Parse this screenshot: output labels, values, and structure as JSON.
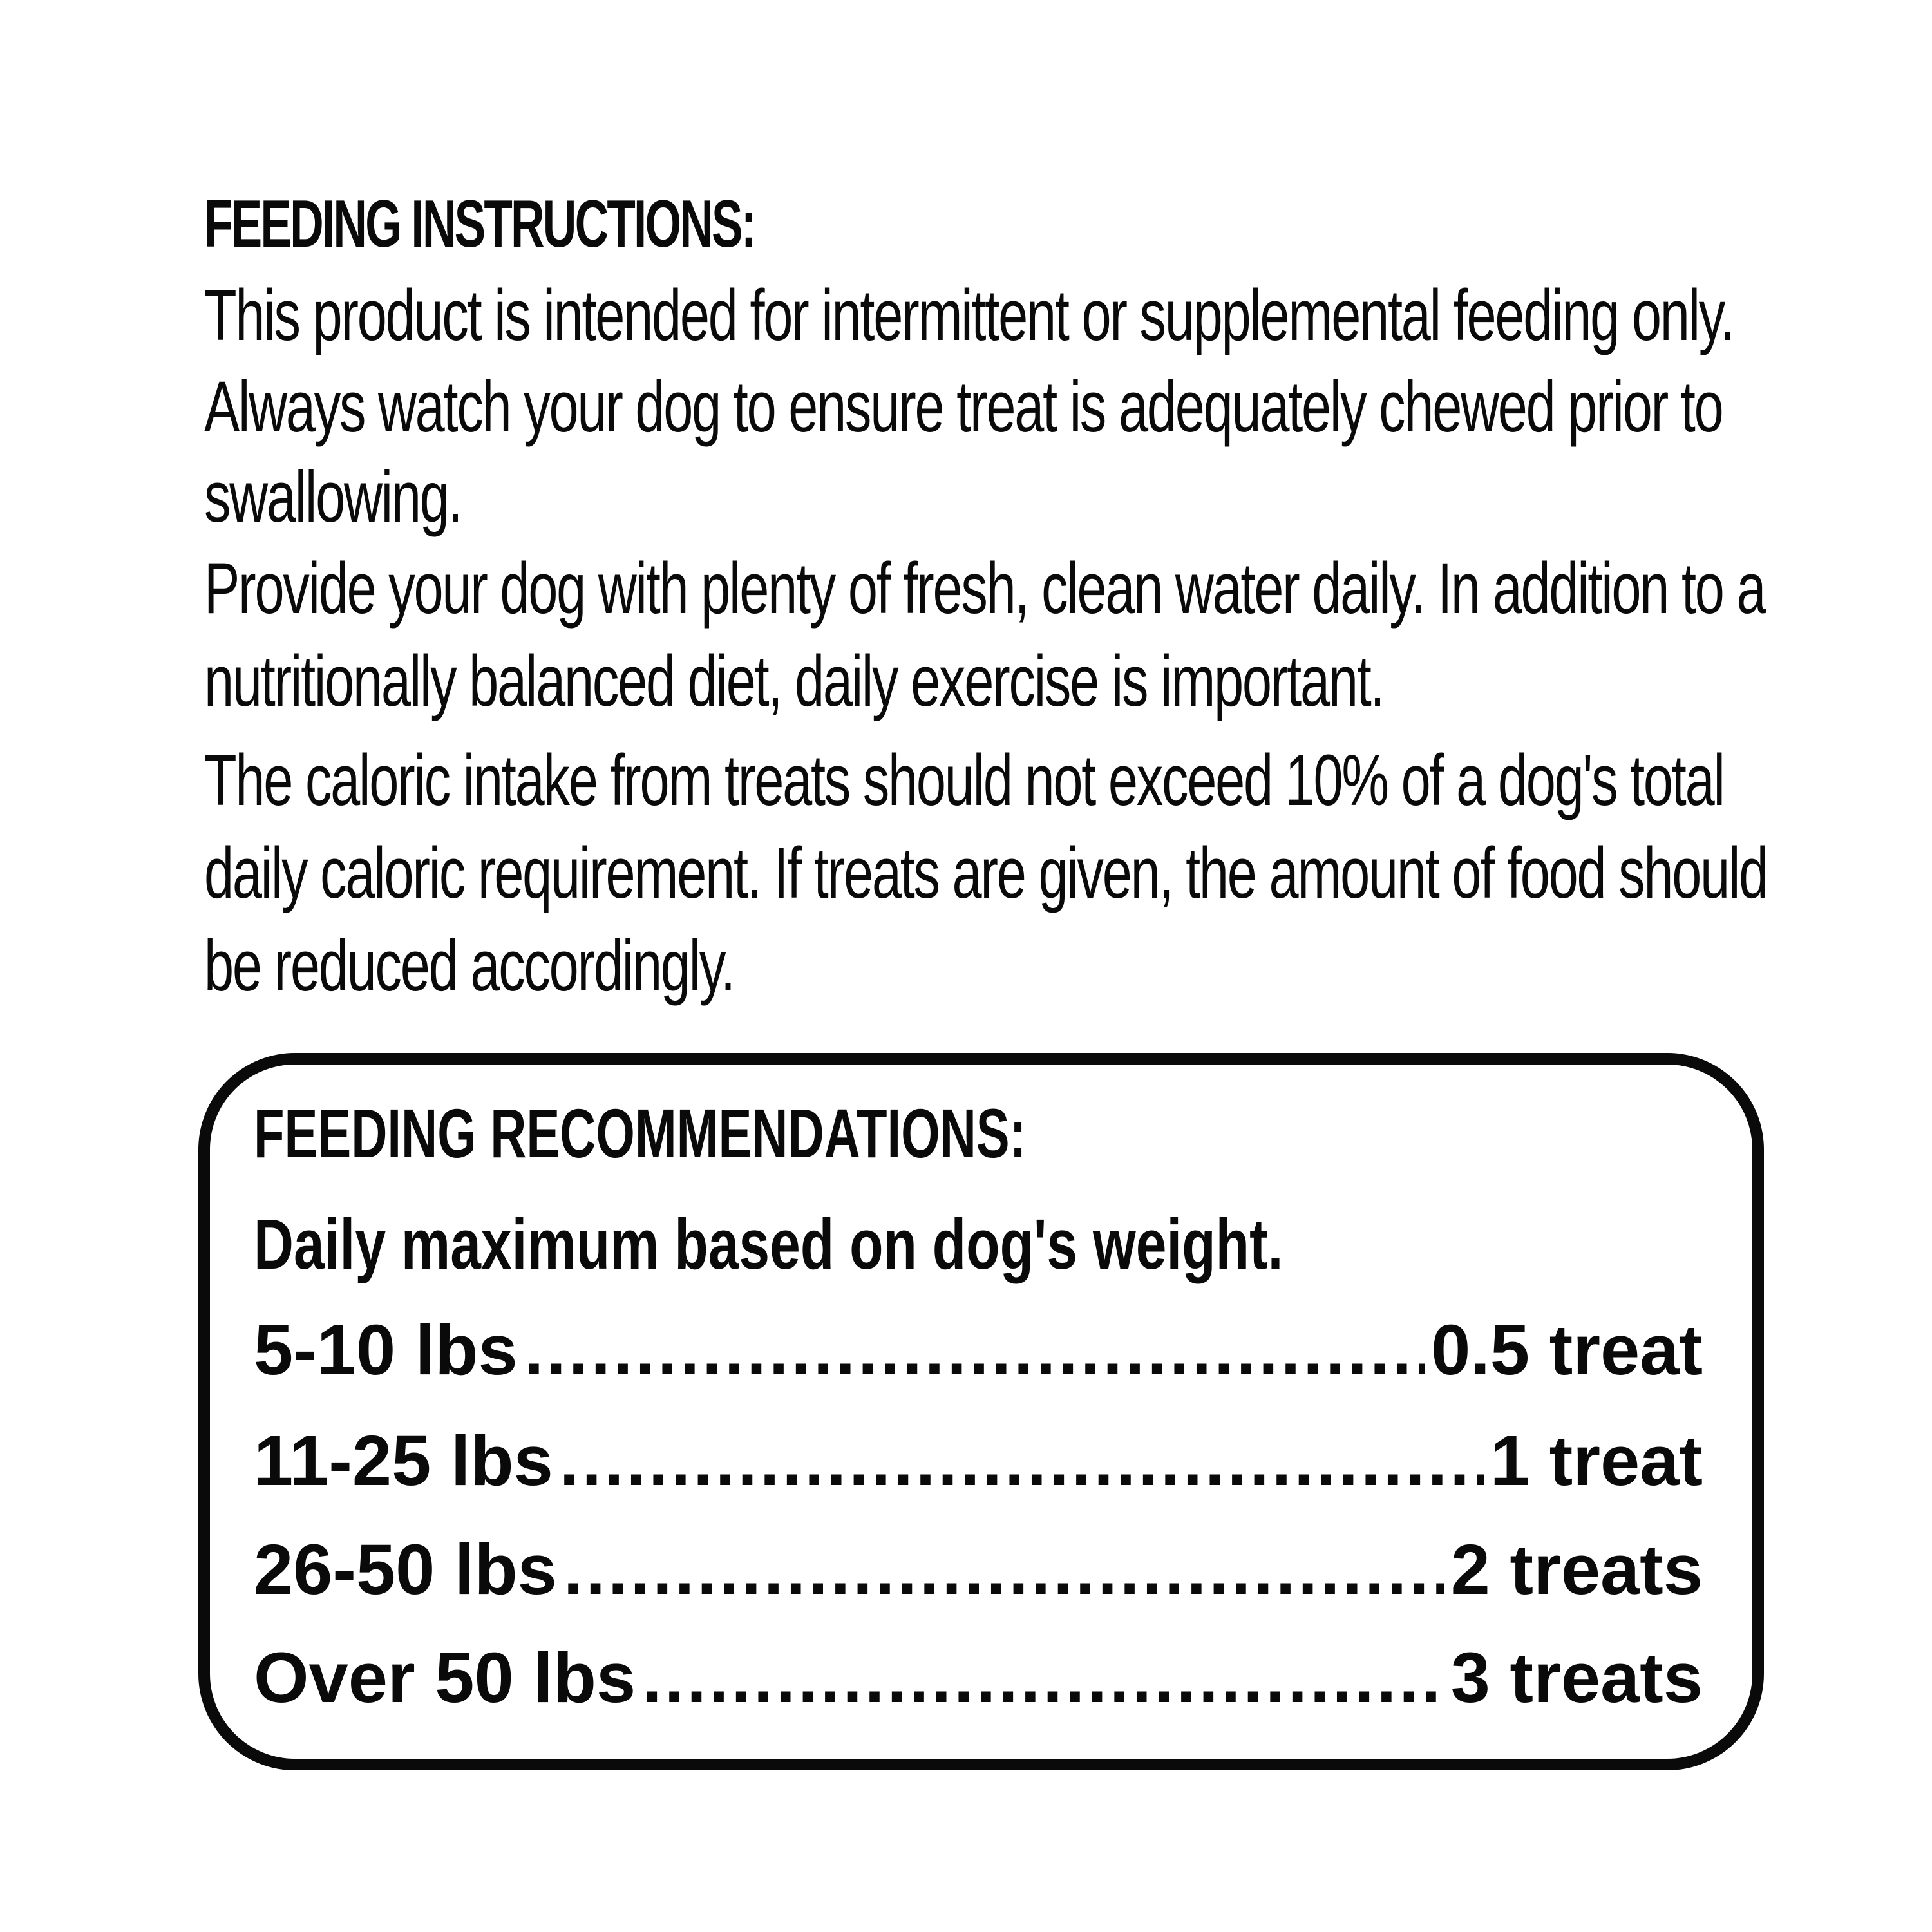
{
  "instructions": {
    "heading": "FEEDING INSTRUCTIONS:",
    "lines": [
      "This product is intended for intermittent or supplemental feeding only.",
      "Always watch your dog to ensure treat is adequately chewed prior to",
      "swallowing.",
      "Provide your dog with plenty of fresh, clean water daily. In addition to a",
      "nutritionally balanced diet, daily exercise is important.",
      "The caloric intake from treats should not exceed 10% of a dog's total",
      "daily caloric requirement. If treats are given, the amount of food should",
      "be reduced accordingly."
    ]
  },
  "recommendations": {
    "heading": "FEEDING RECOMMENDATIONS:",
    "subheading": "Daily maximum based on dog's weight.",
    "rows": [
      {
        "weight": "5-10 lbs",
        "amount": "0.5 treat"
      },
      {
        "weight": "11-25 lbs",
        "amount": "1 treat"
      },
      {
        "weight": "26-50 lbs",
        "amount": "2 treats"
      },
      {
        "weight": "Over 50 lbs",
        "amount": "3 treats"
      }
    ]
  }
}
